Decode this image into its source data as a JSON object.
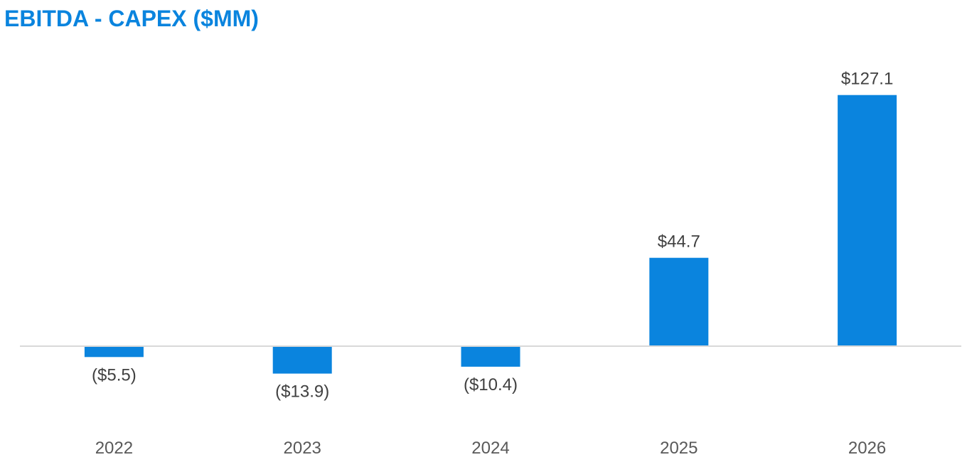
{
  "chart_data": {
    "type": "bar",
    "title": "EBITDA - CAPEX ($MM)",
    "categories": [
      "2022",
      "2023",
      "2024",
      "2025",
      "2026"
    ],
    "values": [
      -5.5,
      -13.9,
      -10.4,
      44.7,
      127.1
    ],
    "data_labels": [
      "($5.5)",
      "($13.9)",
      "($10.4)",
      "$44.7",
      "$127.1"
    ],
    "xlabel": "",
    "ylabel": "",
    "ylim": [
      -20,
      135
    ],
    "grid": false,
    "legend": "none",
    "colors": {
      "bar": "#0a84de",
      "title": "#0a84de",
      "axis": "#d9d9d9"
    }
  }
}
